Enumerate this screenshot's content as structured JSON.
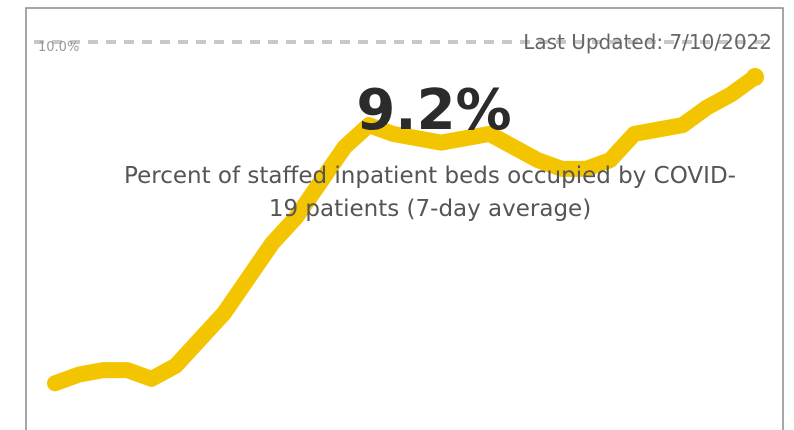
{
  "chart_data": {
    "type": "line",
    "kpi": {
      "value": 9.2,
      "label": "9.2%"
    },
    "subtitle": "Percent of staffed inpatient beds occupied by COVID-19 patients (7-day average)",
    "last_updated": "Last Updated: 7/10/2022",
    "reference": {
      "value": 10,
      "label": "10.0%"
    },
    "series": [
      {
        "color": "#f2c500",
        "values": [
          2.2,
          2.4,
          2.5,
          2.5,
          2.3,
          2.6,
          3.2,
          3.8,
          4.6,
          5.4,
          6.0,
          6.8,
          7.6,
          8.1,
          7.9,
          7.8,
          7.7,
          7.8,
          7.9,
          7.6,
          7.3,
          7.1,
          7.1,
          7.3,
          7.9,
          8.0,
          8.1,
          8.5,
          8.8,
          9.2
        ]
      }
    ],
    "ylim": [
      2,
      10
    ]
  }
}
